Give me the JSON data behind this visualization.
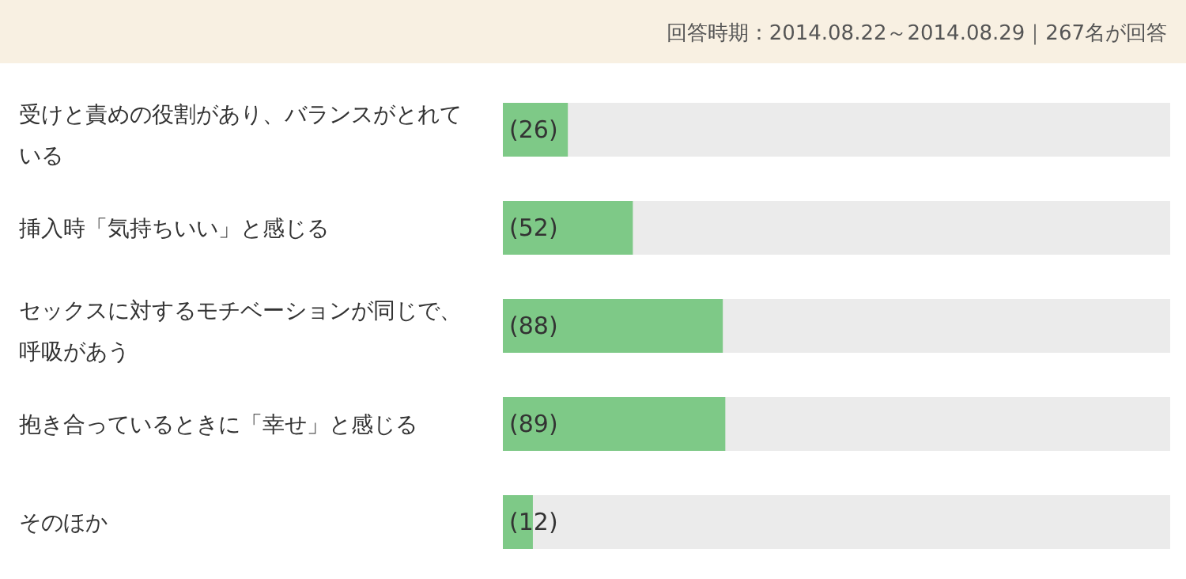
{
  "chart_data": {
    "type": "bar",
    "orientation": "horizontal",
    "subtitle": "回答時期：2014.08.22～2014.08.29｜267名が回答",
    "categories": [
      "受けと責めの役割があり、バランスがとれている",
      "挿入時「気持ちいい」と感じる",
      "セックスに対するモチベーションが同じで、呼吸があう",
      "抱き合っているときに「幸せ」と感じる",
      "そのほか"
    ],
    "values": [
      26,
      52,
      88,
      89,
      12
    ],
    "value_labels": [
      "(26)",
      "(52)",
      "(88)",
      "(89)",
      "(12)"
    ],
    "color": "#7ec987",
    "xlim": [
      0,
      267
    ]
  }
}
